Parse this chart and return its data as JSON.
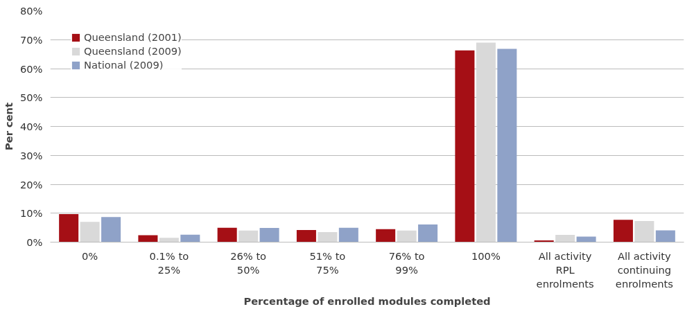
{
  "chart_data": {
    "type": "bar",
    "xlabel": "Percentage of enrolled modules completed",
    "ylabel": "Per cent",
    "categories": [
      "0%",
      "0.1% to 25%",
      "26% to 50%",
      "51% to 75%",
      "76% to 99%",
      "100%",
      "All activity RPL enrolments",
      "All activity continuing enrolments"
    ],
    "series": [
      {
        "name": "Queensland (2001)",
        "color": "#a50f15",
        "values": [
          9.7,
          2.4,
          5.0,
          4.2,
          4.5,
          66.3,
          0.6,
          7.7
        ]
      },
      {
        "name": "Queensland (2009)",
        "color": "#d9d9d9",
        "values": [
          7.0,
          1.5,
          4.0,
          3.5,
          4.0,
          69.0,
          2.5,
          7.3
        ]
      },
      {
        "name": "National (2009)",
        "color": "#8fa2c8",
        "values": [
          8.7,
          2.6,
          4.9,
          5.0,
          6.1,
          66.8,
          1.9,
          4.1
        ]
      }
    ],
    "ylim": [
      0,
      80
    ],
    "yticks": [
      {
        "value": 0,
        "label": "0%"
      },
      {
        "value": 10,
        "label": "10%"
      },
      {
        "value": 20,
        "label": "20%"
      },
      {
        "value": 30,
        "label": "30%"
      },
      {
        "value": 40,
        "label": "40%"
      },
      {
        "value": 50,
        "label": "50%"
      },
      {
        "value": 60,
        "label": "60%"
      },
      {
        "value": 70,
        "label": "70%"
      },
      {
        "value": 80,
        "label": "80%"
      }
    ],
    "grid": "y",
    "legend": "top left"
  }
}
